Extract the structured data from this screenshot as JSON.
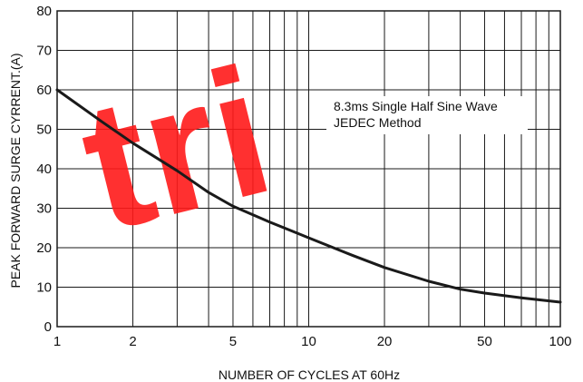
{
  "chart_data": {
    "type": "line",
    "title": "",
    "xlabel": "NUMBER OF CYCLES AT 60Hz",
    "ylabel": "PEAK FORWARD SURGE CYRRENT.(A)",
    "x_scale": "log",
    "xlim": [
      1,
      100
    ],
    "ylim": [
      0,
      80
    ],
    "x_ticks": [
      {
        "value": 1,
        "label": "1"
      },
      {
        "value": 2,
        "label": "2"
      },
      {
        "value": 5,
        "label": "5"
      },
      {
        "value": 10,
        "label": "10"
      },
      {
        "value": 20,
        "label": "20"
      },
      {
        "value": 50,
        "label": "50"
      },
      {
        "value": 100,
        "label": "100"
      }
    ],
    "y_ticks": [
      {
        "value": 0,
        "label": "0"
      },
      {
        "value": 10,
        "label": "10"
      },
      {
        "value": 20,
        "label": "20"
      },
      {
        "value": 30,
        "label": "30"
      },
      {
        "value": 40,
        "label": "40"
      },
      {
        "value": 50,
        "label": "50"
      },
      {
        "value": 60,
        "label": "60"
      },
      {
        "value": 70,
        "label": "70"
      },
      {
        "value": 80,
        "label": "80"
      }
    ],
    "grid": true,
    "annotation": {
      "lines": [
        "8.3ms Single Half Sine Wave",
        "JEDEC Method"
      ],
      "position": "upper-right"
    },
    "series": [
      {
        "x": [
          1,
          1.5,
          2,
          3,
          4,
          5,
          7,
          10,
          15,
          20,
          30,
          40,
          50,
          70,
          100
        ],
        "y": [
          60,
          52,
          46.5,
          39.5,
          34,
          30.5,
          26.5,
          22.5,
          18,
          15,
          11.5,
          9.5,
          8.5,
          7.3,
          6.2
        ],
        "color": "#1a1a1a"
      }
    ],
    "watermark": {
      "text": "tri",
      "color": "#ff1a1a"
    }
  }
}
